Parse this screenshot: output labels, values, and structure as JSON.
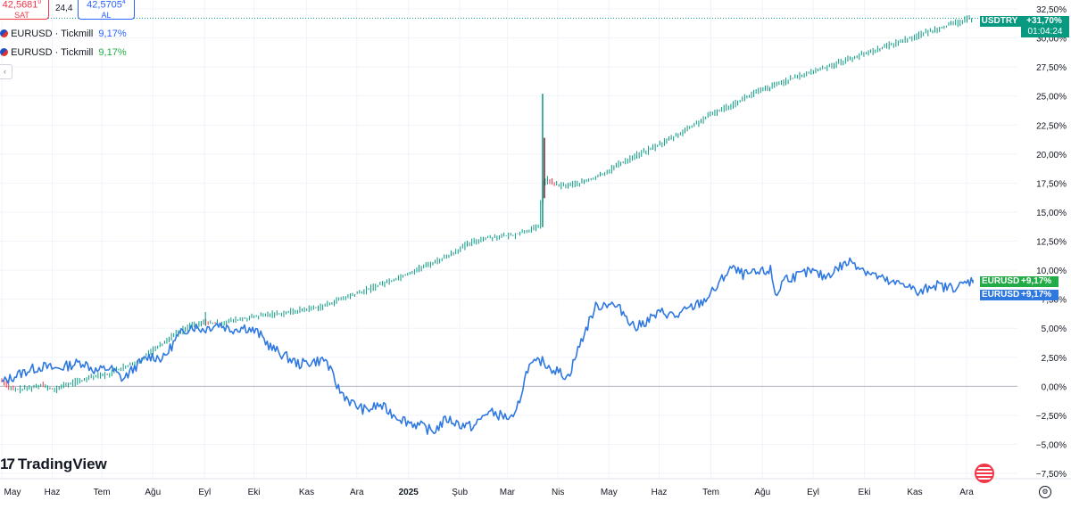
{
  "trade": {
    "sell_price": "42,5681",
    "sell_sup": "0",
    "sell_label": "SAT",
    "spread": "24,4",
    "buy_price": "42,5705",
    "buy_sup": "4",
    "buy_label": "AL"
  },
  "legend": [
    {
      "name": "EURUSD · Tickmill",
      "value": "9,17%",
      "color": "#2962ff"
    },
    {
      "name": "EURUSD · Tickmill",
      "value": "9,17%",
      "color": "#22ab47"
    }
  ],
  "branding": {
    "logo_text": "TradingView",
    "logo_mark": "17"
  },
  "price_tags": {
    "usdtry": {
      "name": "USDTRY",
      "value": "+31,70%",
      "countdown": "01:04:24"
    },
    "eurusd_green": {
      "name": "EURUSD",
      "value": "+9,17%"
    },
    "eurusd_blue": {
      "name": "EURUSD",
      "value": "+9,17%"
    }
  },
  "icons": {
    "settings": "gear-icon",
    "flag": "us-flag-icon",
    "collapse": "chevron-icon"
  },
  "colors": {
    "up": "#089981",
    "down": "#f23645",
    "eurusd": "#2e78e0",
    "grid": "#f0f3fa"
  },
  "chart_data": {
    "type": "line",
    "y_axis_ticks": [
      "32,50%",
      "30,00%",
      "27,50%",
      "25,00%",
      "22,50%",
      "20,00%",
      "17,50%",
      "15,00%",
      "12,50%",
      "10,00%",
      "7,50%",
      "5,00%",
      "2,50%",
      "0,00%",
      "−2,50%",
      "−5,00%",
      "−7,50%"
    ],
    "y_tick_values": [
      32.5,
      30,
      27.5,
      25,
      22.5,
      20,
      17.5,
      15,
      12.5,
      10,
      7.5,
      5,
      2.5,
      0,
      -2.5,
      -5,
      -7.5
    ],
    "ylim": [
      -8.5,
      33
    ],
    "x_axis_labels": [
      "May",
      "Haz",
      "Tem",
      "Ağu",
      "Eyl",
      "Eki",
      "Kas",
      "Ara",
      "2025",
      "Şub",
      "Mar",
      "Nis",
      "May",
      "Haz",
      "Tem",
      "Ağu",
      "Eyl",
      "Eki",
      "Kas",
      "Ara"
    ],
    "x_label_positions": [
      0,
      1.87,
      3.71,
      5.6,
      7.52,
      9.35,
      11.3,
      13.16,
      15.08,
      16.98,
      18.74,
      20.62,
      22.51,
      24.37,
      26.29,
      28.2,
      30.08,
      31.98,
      33.85,
      35.77
    ],
    "xlim": [
      0,
      36.5
    ],
    "series": [
      {
        "name": "USDTRY",
        "style": "candles",
        "points": [
          [
            0,
            0.5
          ],
          [
            0.5,
            -0.3
          ],
          [
            1,
            -0.2
          ],
          [
            1.5,
            0.1
          ],
          [
            2,
            -0.3
          ],
          [
            2.5,
            0.2
          ],
          [
            3,
            0.5
          ],
          [
            3.5,
            0.8
          ],
          [
            4,
            1.0
          ],
          [
            4.5,
            1.6
          ],
          [
            5,
            2.0
          ],
          [
            5.5,
            2.8
          ],
          [
            6,
            3.6
          ],
          [
            6.5,
            4.5
          ],
          [
            7,
            5.1
          ],
          [
            7.5,
            5.5
          ],
          [
            8,
            5.4
          ],
          [
            8.5,
            5.6
          ],
          [
            9,
            5.8
          ],
          [
            9.5,
            6.0
          ],
          [
            10,
            6.2
          ],
          [
            10.5,
            6.3
          ],
          [
            11,
            6.5
          ],
          [
            11.5,
            6.7
          ],
          [
            12,
            6.9
          ],
          [
            12.5,
            7.4
          ],
          [
            13,
            7.8
          ],
          [
            13.5,
            8.2
          ],
          [
            14,
            8.7
          ],
          [
            14.5,
            9.1
          ],
          [
            15,
            9.6
          ],
          [
            15.5,
            10.1
          ],
          [
            16,
            10.6
          ],
          [
            16.5,
            11.1
          ],
          [
            17,
            11.8
          ],
          [
            17.5,
            12.4
          ],
          [
            18,
            12.8
          ],
          [
            18.5,
            12.9
          ],
          [
            19,
            13.0
          ],
          [
            19.5,
            13.4
          ],
          [
            20,
            13.7
          ],
          [
            20.1,
            17.5
          ],
          [
            20.3,
            17.8
          ],
          [
            20.6,
            17.3
          ],
          [
            21,
            17.3
          ],
          [
            21.5,
            17.5
          ],
          [
            22,
            17.9
          ],
          [
            22.5,
            18.5
          ],
          [
            23,
            19.2
          ],
          [
            23.5,
            19.8
          ],
          [
            24,
            20.3
          ],
          [
            24.5,
            20.9
          ],
          [
            25,
            21.5
          ],
          [
            25.5,
            22.2
          ],
          [
            26,
            22.9
          ],
          [
            26.5,
            23.6
          ],
          [
            27,
            24.1
          ],
          [
            27.5,
            24.7
          ],
          [
            28,
            25.3
          ],
          [
            28.5,
            25.7
          ],
          [
            29,
            26.2
          ],
          [
            29.5,
            26.6
          ],
          [
            30,
            27.0
          ],
          [
            30.5,
            27.4
          ],
          [
            31,
            27.8
          ],
          [
            31.5,
            28.2
          ],
          [
            32,
            28.6
          ],
          [
            32.5,
            29.0
          ],
          [
            33,
            29.4
          ],
          [
            33.5,
            29.8
          ],
          [
            34,
            30.2
          ],
          [
            34.5,
            30.6
          ],
          [
            35,
            31.0
          ],
          [
            35.5,
            31.3
          ],
          [
            36,
            31.7
          ]
        ]
      },
      {
        "name": "EURUSD",
        "style": "line",
        "points": [
          [
            0,
            0.3
          ],
          [
            0.5,
            0.9
          ],
          [
            1,
            1.4
          ],
          [
            1.5,
            1.7
          ],
          [
            2,
            1.5
          ],
          [
            2.5,
            1.8
          ],
          [
            3,
            2.1
          ],
          [
            3.5,
            1.3
          ],
          [
            4,
            1.6
          ],
          [
            4.5,
            0.6
          ],
          [
            5,
            1.8
          ],
          [
            5.5,
            2.6
          ],
          [
            6,
            2.4
          ],
          [
            6.5,
            4.2
          ],
          [
            7,
            5.2
          ],
          [
            7.5,
            4.9
          ],
          [
            8,
            5.4
          ],
          [
            8.5,
            4.9
          ],
          [
            9,
            5.1
          ],
          [
            9.5,
            4.6
          ],
          [
            10,
            3.3
          ],
          [
            10.5,
            2.6
          ],
          [
            11,
            1.9
          ],
          [
            11.5,
            2.1
          ],
          [
            12,
            2.3
          ],
          [
            12.5,
            -0.3
          ],
          [
            13,
            -1.5
          ],
          [
            13.5,
            -2.1
          ],
          [
            14,
            -1.6
          ],
          [
            14.5,
            -2.4
          ],
          [
            15,
            -3.0
          ],
          [
            15.5,
            -3.4
          ],
          [
            16,
            -3.9
          ],
          [
            16.5,
            -2.8
          ],
          [
            17,
            -3.3
          ],
          [
            17.5,
            -3.5
          ],
          [
            18,
            -2.2
          ],
          [
            18.5,
            -2.5
          ],
          [
            19,
            -2.9
          ],
          [
            19.5,
            1.6
          ],
          [
            20,
            2.2
          ],
          [
            20.5,
            1.4
          ],
          [
            21,
            0.8
          ],
          [
            21.5,
            4.0
          ],
          [
            22,
            6.8
          ],
          [
            22.5,
            7.2
          ],
          [
            23,
            6.5
          ],
          [
            23.5,
            5.0
          ],
          [
            24,
            5.8
          ],
          [
            24.5,
            6.4
          ],
          [
            25,
            6.0
          ],
          [
            25.5,
            6.7
          ],
          [
            26,
            7.3
          ],
          [
            26.5,
            8.5
          ],
          [
            27,
            10.2
          ],
          [
            27.5,
            9.6
          ],
          [
            28,
            9.7
          ],
          [
            28.5,
            10.0
          ],
          [
            28.7,
            7.7
          ],
          [
            29,
            9.3
          ],
          [
            29.5,
            9.5
          ],
          [
            30,
            9.9
          ],
          [
            30.5,
            9.4
          ],
          [
            31,
            10.2
          ],
          [
            31.5,
            10.8
          ],
          [
            32,
            10.0
          ],
          [
            32.5,
            9.4
          ],
          [
            33,
            8.8
          ],
          [
            33.5,
            8.9
          ],
          [
            34,
            7.9
          ],
          [
            34.5,
            8.8
          ],
          [
            35,
            8.5
          ],
          [
            35.5,
            8.6
          ],
          [
            36,
            9.17
          ]
        ]
      }
    ],
    "grid": true
  }
}
